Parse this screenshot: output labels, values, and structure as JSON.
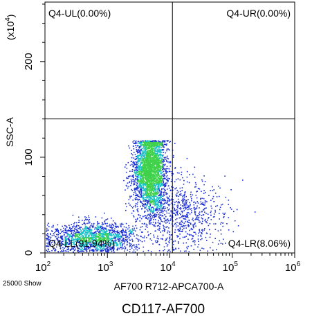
{
  "chart_data": {
    "type": "scatter",
    "plot_style": "flow-cytometry density dot plot",
    "title": "CD117-AF700",
    "xlabel": "AF700 R712-APCA700-A",
    "ylabel": "SSC-A",
    "y_multiplier_label": "(x10",
    "y_multiplier_exponent": "4",
    "y_multiplier_close": ")",
    "x_scale": "log",
    "xlim": [
      100,
      1000000
    ],
    "x_ticks": [
      {
        "value": 100,
        "base": "10",
        "exp": "2"
      },
      {
        "value": 1000,
        "base": "10",
        "exp": "3"
      },
      {
        "value": 10000,
        "base": "10",
        "exp": "4"
      },
      {
        "value": 100000,
        "base": "10",
        "exp": "5"
      },
      {
        "value": 1000000,
        "base": "10",
        "exp": "6"
      }
    ],
    "y_scale": "linear",
    "ylim": [
      0,
      262144
    ],
    "y_ticks": [
      {
        "value": 0,
        "label": "0"
      },
      {
        "value": 100000,
        "label": "100"
      },
      {
        "value": 200000,
        "label": "200"
      }
    ],
    "gates": {
      "x_threshold": 11000,
      "y_threshold": 140000
    },
    "quadrants": [
      {
        "id": "Q4-UL",
        "label": "Q4-UL(0.00%)",
        "percent": 0.0,
        "position": "top-left"
      },
      {
        "id": "Q4-UR",
        "label": "Q4-UR(0.00%)",
        "percent": 0.0,
        "position": "top-right"
      },
      {
        "id": "Q4-LL",
        "label": "Q4-LL(91.94%)",
        "percent": 91.94,
        "position": "bottom-left"
      },
      {
        "id": "Q4-LR",
        "label": "Q4-LR(8.06%)",
        "percent": 8.06,
        "position": "bottom-right"
      }
    ],
    "event_count_label": "25000 Show",
    "populations": [
      {
        "name_hidden": "main",
        "x_center_log": 3.68,
        "x_sd_log": 0.13,
        "y_center": 85000,
        "y_sd": 22000,
        "y_max": 118000,
        "weight": 0.55
      },
      {
        "name_hidden": "low",
        "x_center_log": 2.75,
        "x_sd_log": 0.35,
        "y_center": 16000,
        "y_sd": 8000,
        "y_max": 60000,
        "weight": 0.3
      },
      {
        "name_hidden": "right",
        "x_center_log": 4.2,
        "x_sd_log": 0.35,
        "y_center": 40000,
        "y_sd": 20000,
        "y_max": 100000,
        "weight": 0.15
      }
    ],
    "colors": {
      "density_low": "#1a2fd6",
      "density_mid": "#19c2c8",
      "density_high": "#3fd14a",
      "gate_line": "#000000",
      "frame": "#000000"
    }
  }
}
